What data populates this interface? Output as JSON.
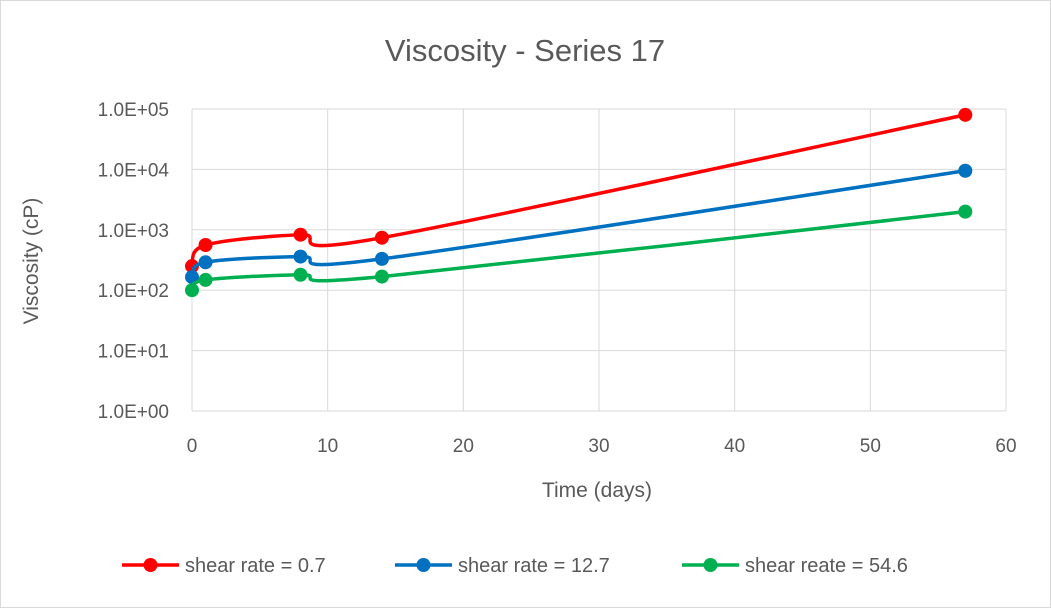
{
  "chart_data": {
    "type": "line",
    "title": "Viscosity - Series 17",
    "xlabel": "Time (days)",
    "ylabel": "Viscosity (cP)",
    "xlim": [
      0,
      60
    ],
    "x_ticks": [
      0,
      10,
      20,
      30,
      40,
      50,
      60
    ],
    "x_tick_labels": [
      "0",
      "10",
      "20",
      "30",
      "40",
      "50",
      "60"
    ],
    "y_scale": "log",
    "ylim": [
      1,
      100000
    ],
    "y_ticks": [
      1,
      10,
      100,
      1000,
      10000,
      100000
    ],
    "y_tick_labels": [
      "1.0E+00",
      "1.0E+01",
      "1.0E+02",
      "1.0E+03",
      "1.0E+04",
      "1.0E+05"
    ],
    "grid": true,
    "legend": "bottom",
    "smooth": true,
    "series": [
      {
        "name": "shear rate = 0.7",
        "color": "#ff0000",
        "x": [
          0,
          1,
          8,
          14,
          57
        ],
        "y": [
          250,
          560,
          830,
          740,
          80000
        ]
      },
      {
        "name": "shear rate = 12.7",
        "color": "#0070c0",
        "x": [
          0,
          1,
          8,
          14,
          57
        ],
        "y": [
          165,
          290,
          360,
          330,
          9500
        ]
      },
      {
        "name": "shear reate = 54.6",
        "color": "#00b050",
        "x": [
          0,
          1,
          8,
          14,
          57
        ],
        "y": [
          100,
          148,
          180,
          168,
          2000
        ]
      }
    ]
  }
}
